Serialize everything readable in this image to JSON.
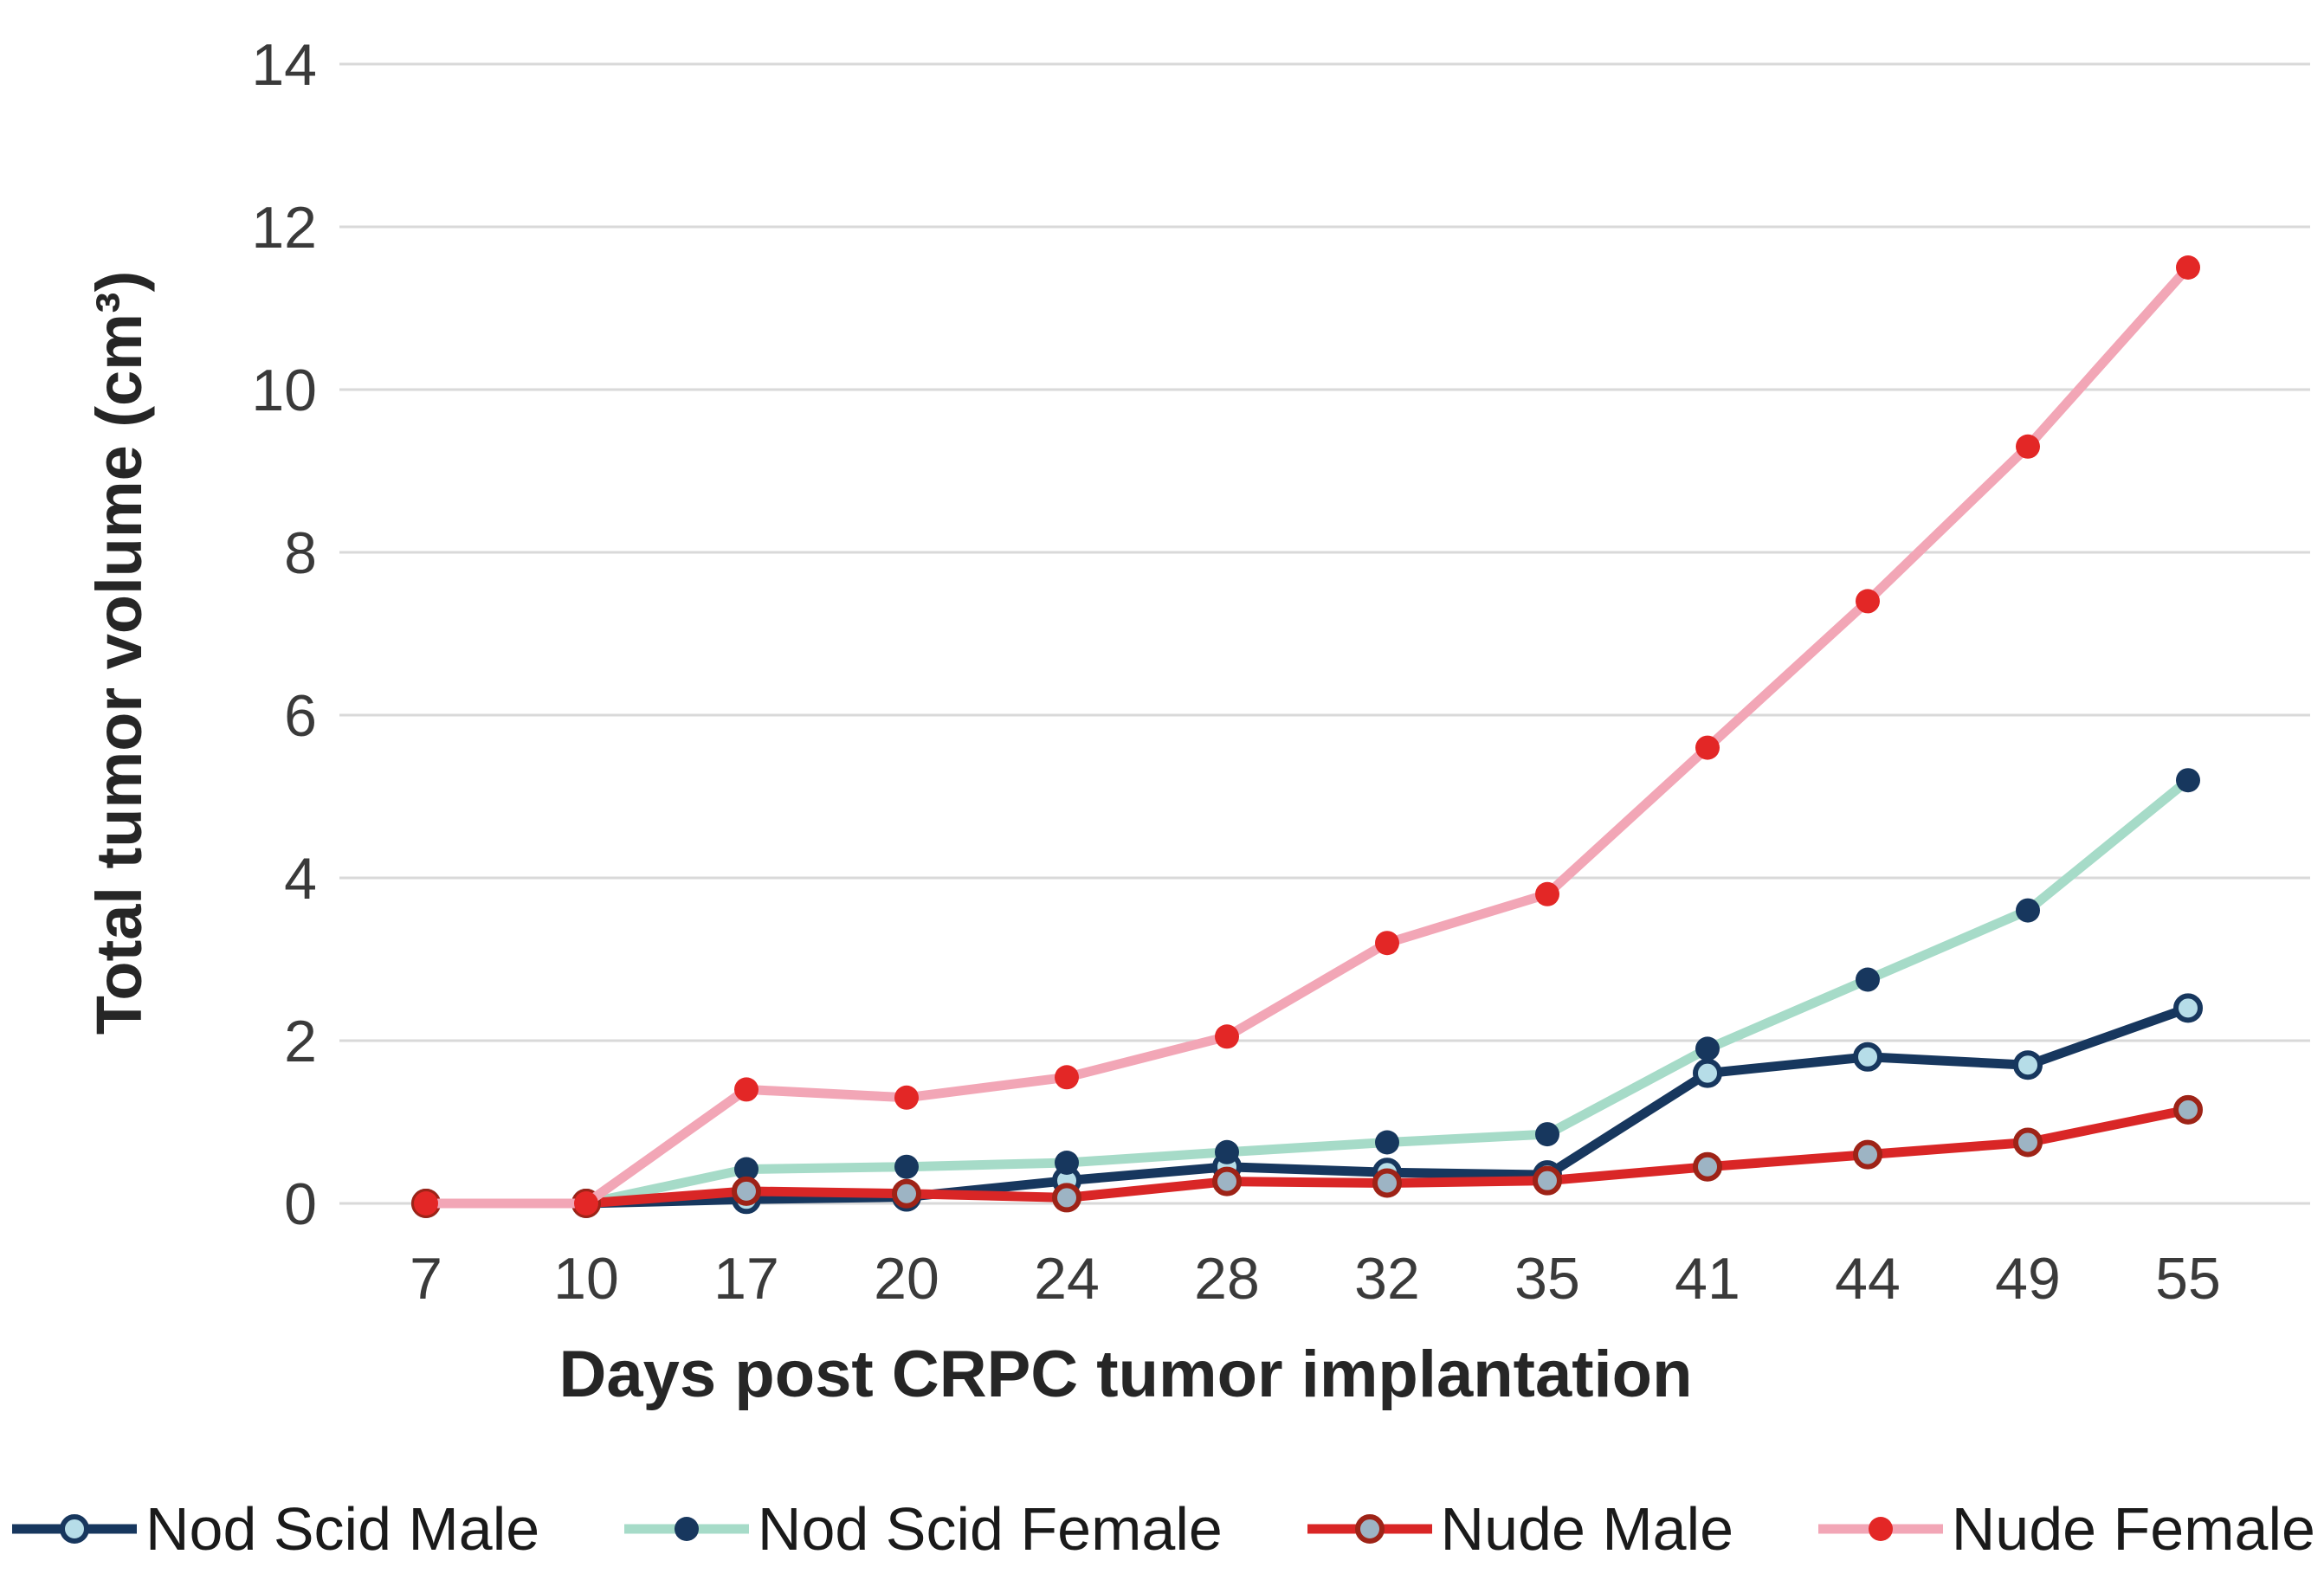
{
  "figure": {
    "background_color": "#ffffff",
    "gridline_color": "#d9d9d9",
    "tick_label_color": "#3a3a3a",
    "title_color": "#262626"
  },
  "y_axis": {
    "title": "Total tumor volume (cm³)",
    "tick_labels": [
      "0",
      "2",
      "4",
      "6",
      "8",
      "10",
      "12",
      "14"
    ]
  },
  "x_axis": {
    "title": "Days post CRPC tumor implantation",
    "tick_labels": [
      "7",
      "10",
      "17",
      "20",
      "24",
      "28",
      "32",
      "35",
      "41",
      "44",
      "49",
      "55"
    ]
  },
  "chart_data": {
    "type": "line",
    "title": "",
    "xlabel": "Days post CRPC tumor implantation",
    "ylabel": "Total tumor volume (cm³)",
    "categories": [
      7,
      10,
      17,
      20,
      24,
      28,
      32,
      35,
      41,
      44,
      49,
      55
    ],
    "ylim": [
      0,
      14
    ],
    "y_tick_step": 2,
    "grid": "horizontal",
    "legend_position": "bottom",
    "series": [
      {
        "name": "Nod Scid Male",
        "line_color": "#17375e",
        "marker": "open-circle",
        "marker_fill": "#b6dde8",
        "marker_stroke": "#17375e",
        "values": [
          0,
          0,
          0.05,
          0.08,
          0.28,
          0.45,
          0.38,
          0.35,
          1.6,
          1.8,
          1.7,
          2.4
        ]
      },
      {
        "name": "Nod Scid Female",
        "line_color": "#a6dbc8",
        "marker": "dot",
        "marker_fill": "#17375e",
        "marker_stroke": "#17375e",
        "values": [
          0,
          0,
          0.42,
          0.45,
          0.5,
          0.63,
          0.75,
          0.85,
          1.9,
          2.75,
          3.6,
          5.2
        ]
      },
      {
        "name": "Nude Male",
        "line_color": "#d92626",
        "marker": "open-circle",
        "marker_fill": "#9db4c4",
        "marker_stroke": "#9e2317",
        "values": [
          0,
          0,
          0.15,
          0.12,
          0.07,
          0.27,
          0.25,
          0.28,
          0.45,
          0.6,
          0.75,
          1.15
        ]
      },
      {
        "name": "Nude Female",
        "line_color": "#f2a6b6",
        "marker": "dot",
        "marker_fill": "#e32726",
        "marker_stroke": "#e32726",
        "values": [
          0,
          0,
          1.4,
          1.3,
          1.55,
          2.05,
          3.2,
          3.8,
          5.6,
          7.4,
          9.3,
          11.5
        ]
      }
    ]
  }
}
